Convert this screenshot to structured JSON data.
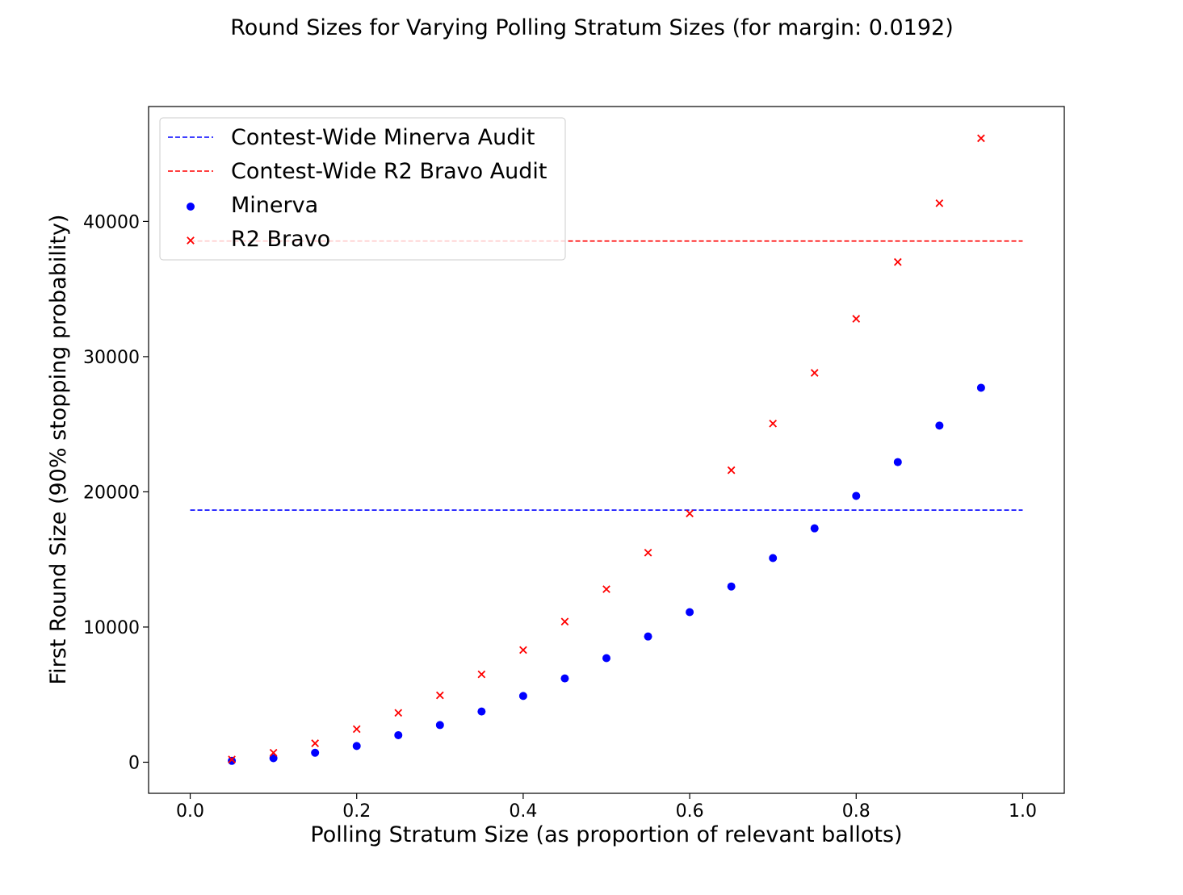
{
  "chart_data": {
    "type": "scatter",
    "title": "Round Sizes for Varying Polling Stratum Sizes (for margin: 0.0192)",
    "xlabel": "Polling Stratum Size (as proportion of relevant ballots)",
    "ylabel": "First Round Size (90% stopping probability)",
    "xlim": [
      -0.05,
      1.05
    ],
    "ylim": [
      -2300,
      48500
    ],
    "xticks": [
      0.0,
      0.2,
      0.4,
      0.6,
      0.8,
      1.0
    ],
    "xtick_labels": [
      "0.0",
      "0.2",
      "0.4",
      "0.6",
      "0.8",
      "1.0"
    ],
    "yticks": [
      0,
      10000,
      20000,
      30000,
      40000
    ],
    "ytick_labels": [
      "0",
      "10000",
      "20000",
      "30000",
      "40000"
    ],
    "grid": false,
    "legend_position": "upper-left",
    "x": [
      0.05,
      0.1,
      0.15,
      0.2,
      0.25,
      0.3,
      0.35,
      0.4,
      0.45,
      0.5,
      0.55,
      0.6,
      0.65,
      0.7,
      0.75,
      0.8,
      0.85,
      0.9,
      0.95
    ],
    "series": [
      {
        "name": "Minerva",
        "kind": "points",
        "marker": "circle",
        "color": "#0000ff",
        "values": [
          100,
          300,
          700,
          1200,
          2000,
          2750,
          3750,
          4900,
          6200,
          7700,
          9300,
          11100,
          13000,
          15100,
          17300,
          19700,
          22200,
          24900,
          27700
        ]
      },
      {
        "name": "R2 Bravo",
        "kind": "points",
        "marker": "x",
        "color": "#ff0000",
        "values": [
          200,
          700,
          1400,
          2450,
          3650,
          4950,
          6500,
          8300,
          10400,
          12800,
          15500,
          18400,
          21600,
          25050,
          28800,
          32800,
          37000,
          41350,
          46150
        ]
      }
    ],
    "reference_lines": [
      {
        "name": "Contest-Wide Minerva Audit",
        "style": "dashed",
        "color": "#0000ff",
        "y": 18650,
        "x_range": [
          0.0,
          1.0
        ]
      },
      {
        "name": "Contest-Wide R2 Bravo Audit",
        "style": "dashed",
        "color": "#ff0000",
        "y": 38550,
        "x_range": [
          0.0,
          1.0
        ]
      }
    ],
    "legend": [
      {
        "label": "Contest-Wide Minerva Audit",
        "symbol": "dashed-line",
        "color": "#0000ff"
      },
      {
        "label": "Contest-Wide R2 Bravo Audit",
        "symbol": "dashed-line",
        "color": "#ff0000"
      },
      {
        "label": "Minerva",
        "symbol": "circle",
        "color": "#0000ff"
      },
      {
        "label": "R2 Bravo",
        "symbol": "x",
        "color": "#ff0000"
      }
    ]
  }
}
